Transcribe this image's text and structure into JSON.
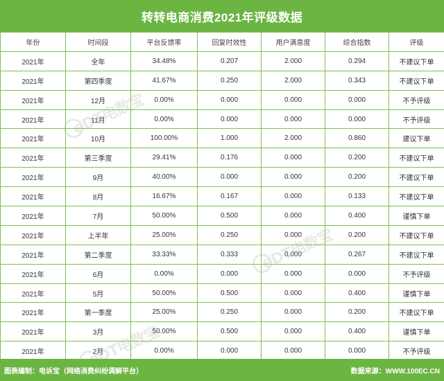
{
  "title": "转转电商消费2021年评级数据",
  "table": {
    "headers": [
      "年份",
      "时间段",
      "平台反馈率",
      "回复时效性",
      "用户满意度",
      "综合指数",
      "评级"
    ],
    "rows": [
      [
        "2021年",
        "全年",
        "34.48%",
        "0.207",
        "2.000",
        "0.294",
        "不建议下单"
      ],
      [
        "2021年",
        "第四季度",
        "41.67%",
        "0.250",
        "2.000",
        "0.343",
        "不建议下单"
      ],
      [
        "2021年",
        "12月",
        "0.00%",
        "0.000",
        "0.000",
        "0.000",
        "不予评级"
      ],
      [
        "2021年",
        "11月",
        "0.00%",
        "0.000",
        "0.000",
        "0.000",
        "不予评级"
      ],
      [
        "2021年",
        "10月",
        "100.00%",
        "1.000",
        "2.000",
        "0.860",
        "建议下单"
      ],
      [
        "2021年",
        "第三季度",
        "29.41%",
        "0.176",
        "0.000",
        "0.200",
        "不建议下单"
      ],
      [
        "2021年",
        "9月",
        "40.00%",
        "0.000",
        "0.000",
        "0.200",
        "不建议下单"
      ],
      [
        "2021年",
        "8月",
        "16.67%",
        "0.167",
        "0.000",
        "0.133",
        "不建议下单"
      ],
      [
        "2021年",
        "7月",
        "50.00%",
        "0.500",
        "0.000",
        "0.400",
        "谨慎下单"
      ],
      [
        "2021年",
        "上半年",
        "25.00%",
        "0.250",
        "0.000",
        "0.200",
        "不建议下单"
      ],
      [
        "2021年",
        "第二季度",
        "33.33%",
        "0.333",
        "0.000",
        "0.267",
        "不建议下单"
      ],
      [
        "2021年",
        "6月",
        "0.00%",
        "0.000",
        "0.000",
        "0.000",
        "不予评级"
      ],
      [
        "2021年",
        "5月",
        "50.00%",
        "0.500",
        "0.000",
        "0.400",
        "谨慎下单"
      ],
      [
        "2021年",
        "第一季度",
        "25.00%",
        "0.250",
        "0.000",
        "0.200",
        "不建议下单"
      ],
      [
        "2021年",
        "3月",
        "50.00%",
        "0.500",
        "0.000",
        "0.400",
        "谨慎下单"
      ],
      [
        "2021年",
        "2月",
        "0.00%",
        "0.000",
        "0.000",
        "0.000",
        "不予评级"
      ]
    ]
  },
  "footer": {
    "left": "图表编制：电诉宝（网络消费纠纷调解平台）",
    "right": "数据来源：WWW.100EC.CN"
  },
  "watermark": {
    "text": "eDT电数宝",
    "color": "#9aa59a"
  },
  "colors": {
    "accent": "#6cb543",
    "grid": "#7cbf55"
  }
}
